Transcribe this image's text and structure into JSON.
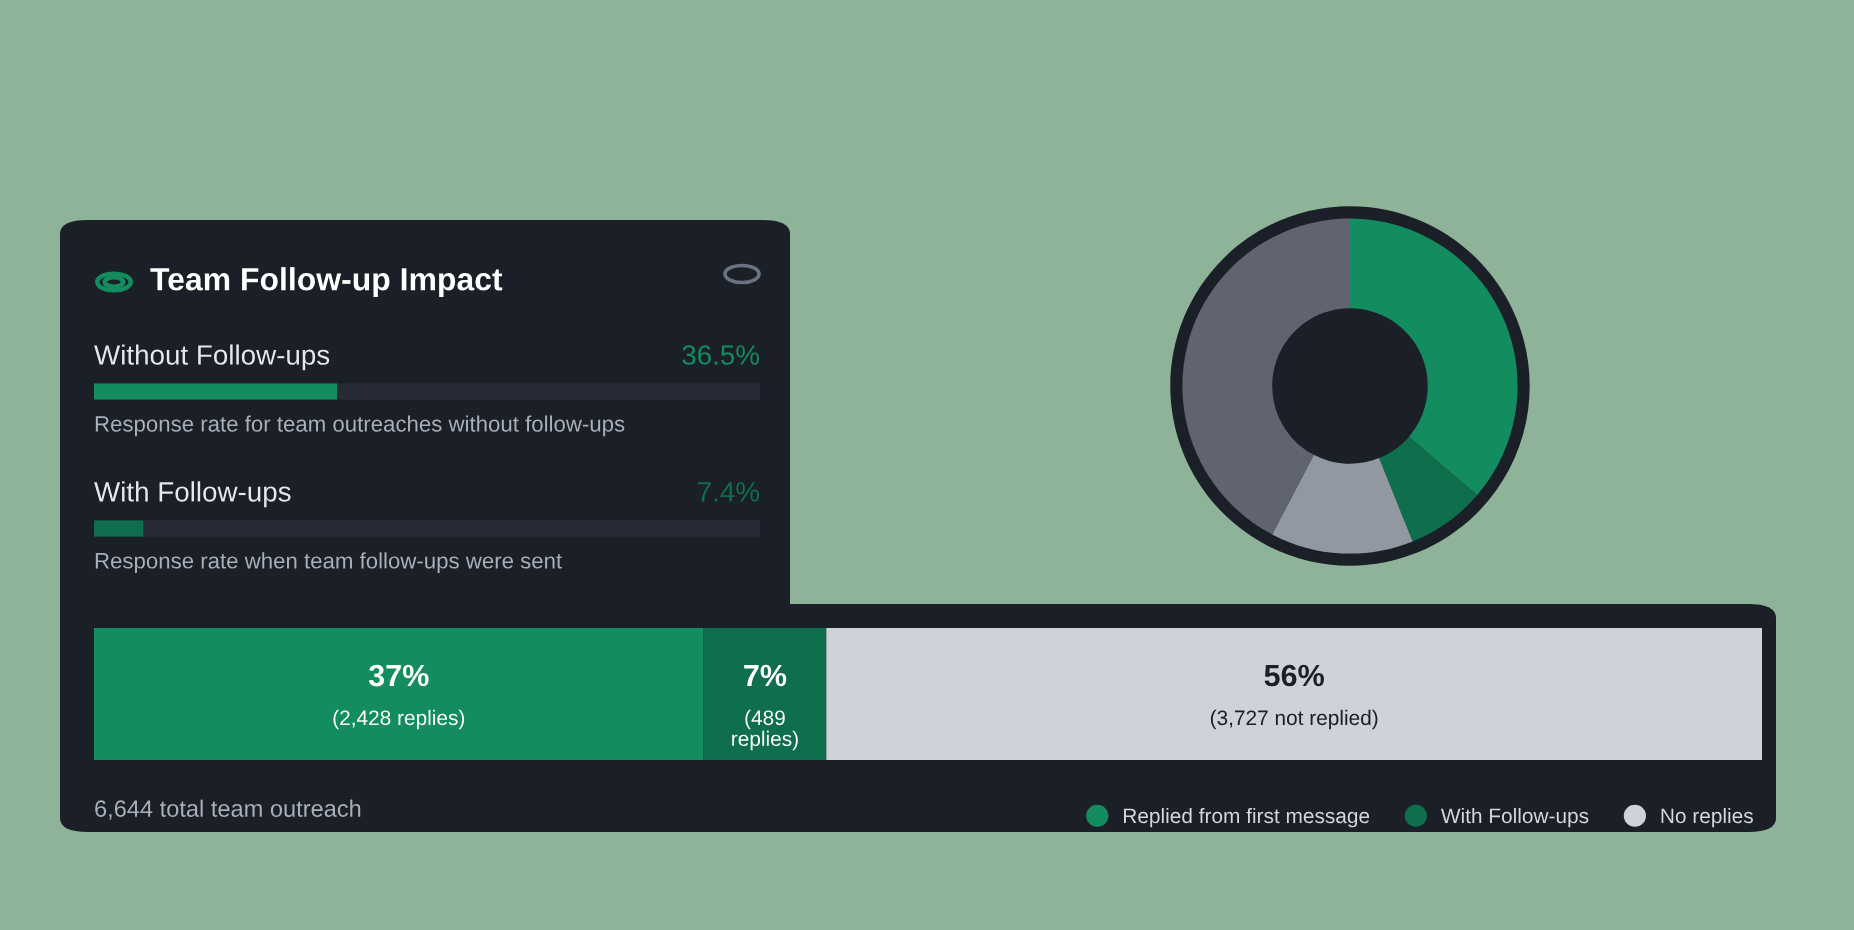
{
  "chart_data": [
    {
      "type": "bar",
      "orientation": "horizontal",
      "title": "Team Follow-up Impact",
      "categories": [
        "Without Follow-ups",
        "With Follow-ups"
      ],
      "values": [
        36.5,
        7.4
      ],
      "colors": [
        "#138d5f",
        "#0f6f4c"
      ],
      "value_labels": [
        "36.5%",
        "7.4%"
      ],
      "xlim": [
        0,
        100
      ],
      "tick_labels": false,
      "grid": false,
      "legend": false,
      "annotations": [
        "Response rate for team outreaches without follow-ups",
        "Response rate when team follow-ups were sent"
      ]
    },
    {
      "type": "donut",
      "categories": [
        null,
        null,
        null,
        null
      ],
      "values": [
        36.3,
        7.6,
        13.8,
        42.3
      ],
      "colors": [
        "#138d5f",
        "#0f6f4c",
        "#9198a1",
        "#5f6470"
      ]
    },
    {
      "type": "bar",
      "orientation": "horizontal",
      "stacked": true,
      "categories": [
        null
      ],
      "xlim": [
        0,
        6644
      ],
      "tick_labels": false,
      "grid": false,
      "legend": "bottom right",
      "series": [
        {
          "name": "Replied from first message",
          "color": "#138d5f",
          "values": [
            2428
          ],
          "value_labels": [
            "37%\n(2,428 replies)"
          ]
        },
        {
          "name": "With Follow-ups",
          "color": "#0f6f4c",
          "values": [
            489
          ],
          "value_labels": [
            "7%\n(489\nreplies)"
          ]
        },
        {
          "name": "No replies",
          "color": "#cfd2d9",
          "values": [
            3727
          ],
          "value_labels": [
            "56%\n(3,727 not replied)"
          ]
        }
      ],
      "annotations": [
        "6,644 total team outreach"
      ]
    }
  ]
}
